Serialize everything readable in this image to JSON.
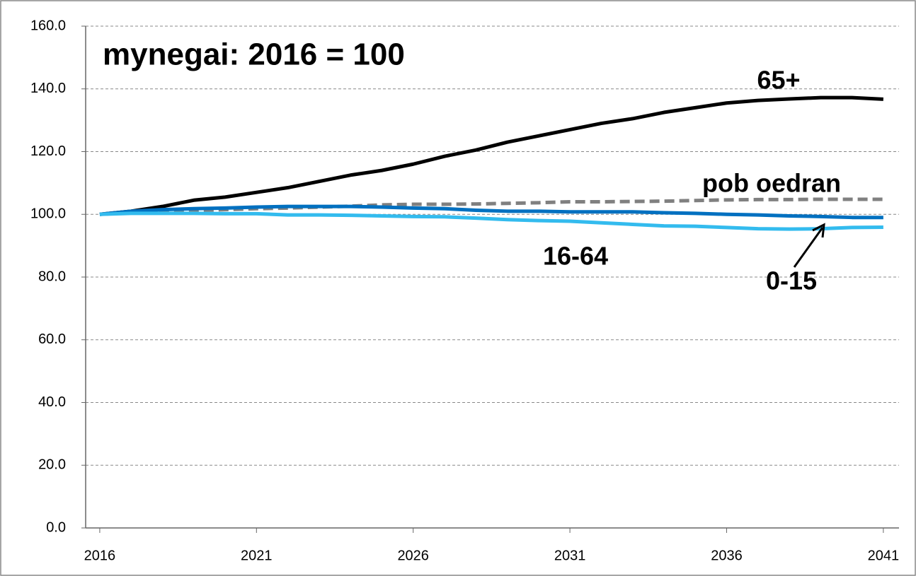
{
  "chart_data": {
    "type": "line",
    "title": "mynegai: 2016 = 100",
    "x": [
      2016,
      2017,
      2018,
      2019,
      2020,
      2021,
      2022,
      2023,
      2024,
      2025,
      2026,
      2027,
      2028,
      2029,
      2030,
      2031,
      2032,
      2033,
      2034,
      2035,
      2036,
      2037,
      2038,
      2039,
      2040,
      2041
    ],
    "series": [
      {
        "name": "65+",
        "color": "#000000",
        "dashed": false,
        "values": [
          100,
          101,
          102.5,
          104.5,
          105.5,
          107,
          108.5,
          110.5,
          112.5,
          114,
          116,
          118.5,
          120.5,
          123,
          125,
          127,
          129,
          130.5,
          132.5,
          134,
          135.5,
          136.3,
          136.8,
          137.2,
          137.2,
          136.7
        ]
      },
      {
        "name": "pob oedran",
        "color": "#808080",
        "dashed": true,
        "values": [
          100,
          100.5,
          101,
          101.2,
          101.5,
          101.8,
          102,
          102.3,
          102.6,
          103,
          103.2,
          103.2,
          103.3,
          103.5,
          103.7,
          104,
          104,
          104.1,
          104.2,
          104.4,
          104.6,
          104.7,
          104.7,
          104.8,
          104.8,
          104.8
        ]
      },
      {
        "name": "16-64",
        "color": "#0070c0",
        "dashed": false,
        "values": [
          100,
          101,
          101.5,
          101.8,
          102,
          102.3,
          102.5,
          102.5,
          102.5,
          102.3,
          102,
          101.8,
          101.3,
          101,
          101,
          100.8,
          100.8,
          100.8,
          100.5,
          100.3,
          100,
          99.8,
          99.5,
          99.3,
          99,
          99
        ]
      },
      {
        "name": "0-15",
        "color": "#33bbee",
        "dashed": false,
        "values": [
          100,
          100.3,
          100.3,
          100.3,
          100.2,
          100.2,
          99.8,
          99.8,
          99.7,
          99.5,
          99.3,
          99.2,
          98.8,
          98.3,
          98,
          97.8,
          97.3,
          96.8,
          96.3,
          96.2,
          95.8,
          95.4,
          95.3,
          95.4,
          95.8,
          95.9
        ]
      }
    ],
    "xlim": [
      2015.55,
      2041.5
    ],
    "xticks": [
      2016,
      2021,
      2026,
      2031,
      2036,
      2041
    ],
    "ylim": [
      0,
      160
    ],
    "yticks": [
      {
        "value": 0,
        "label": "0.0"
      },
      {
        "value": 20,
        "label": "20.0"
      },
      {
        "value": 40,
        "label": "40.0"
      },
      {
        "value": 60,
        "label": "60.0"
      },
      {
        "value": 80,
        "label": "80.0"
      },
      {
        "value": 100,
        "label": "100.0"
      },
      {
        "value": 120,
        "label": "120.0"
      },
      {
        "value": 140,
        "label": "140.0"
      },
      {
        "value": 160,
        "label": "160.0"
      }
    ],
    "grid": true
  }
}
